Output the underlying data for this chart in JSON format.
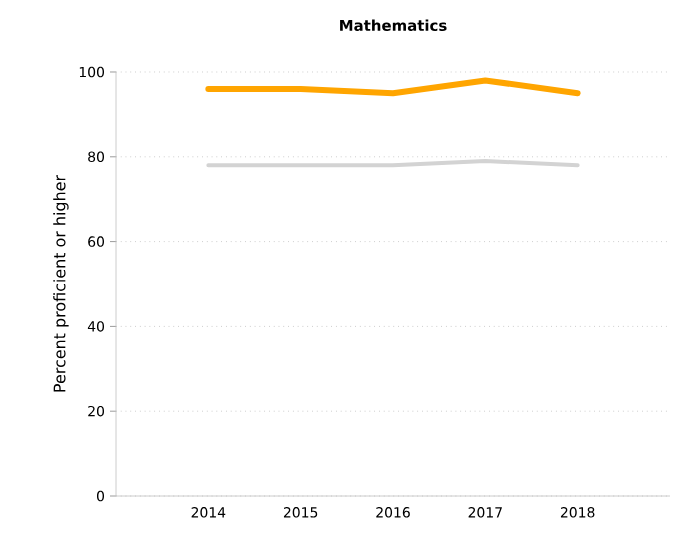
{
  "chart_data": {
    "type": "line",
    "title": "Mathematics",
    "ylabel": "Percent proficient or higher",
    "categories": [
      "2014",
      "2015",
      "2016",
      "2017",
      "2018"
    ],
    "series": [
      {
        "color": "#ffa500",
        "values": [
          96,
          96,
          95,
          98,
          95
        ]
      },
      {
        "color": "#d3d3d3",
        "values": [
          78,
          78,
          78,
          79,
          78
        ]
      }
    ],
    "ylim": [
      0,
      100
    ],
    "yticks": [
      0,
      20,
      40,
      60,
      80,
      100
    ],
    "grid": "y",
    "marker": "none",
    "line_style": "solid"
  }
}
